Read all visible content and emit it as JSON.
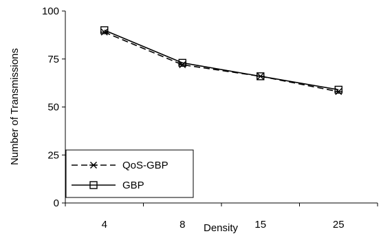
{
  "chart_data": {
    "type": "line",
    "title": "",
    "xlabel": "Density",
    "ylabel": "Number of Transmissions",
    "categories": [
      "4",
      "8",
      "15",
      "25"
    ],
    "ylim": [
      0,
      100
    ],
    "yticks": [
      "0",
      "25",
      "50",
      "75",
      "100"
    ],
    "grid": false,
    "legend_position": "bottom-left",
    "series": [
      {
        "name": "QoS-GBP",
        "values": [
          89,
          72,
          66,
          58
        ],
        "marker": "asterisk",
        "line_style": "dashed",
        "color": "#000000"
      },
      {
        "name": "GBP",
        "values": [
          90,
          73,
          66,
          59
        ],
        "marker": "square",
        "line_style": "solid",
        "color": "#000000"
      }
    ]
  }
}
